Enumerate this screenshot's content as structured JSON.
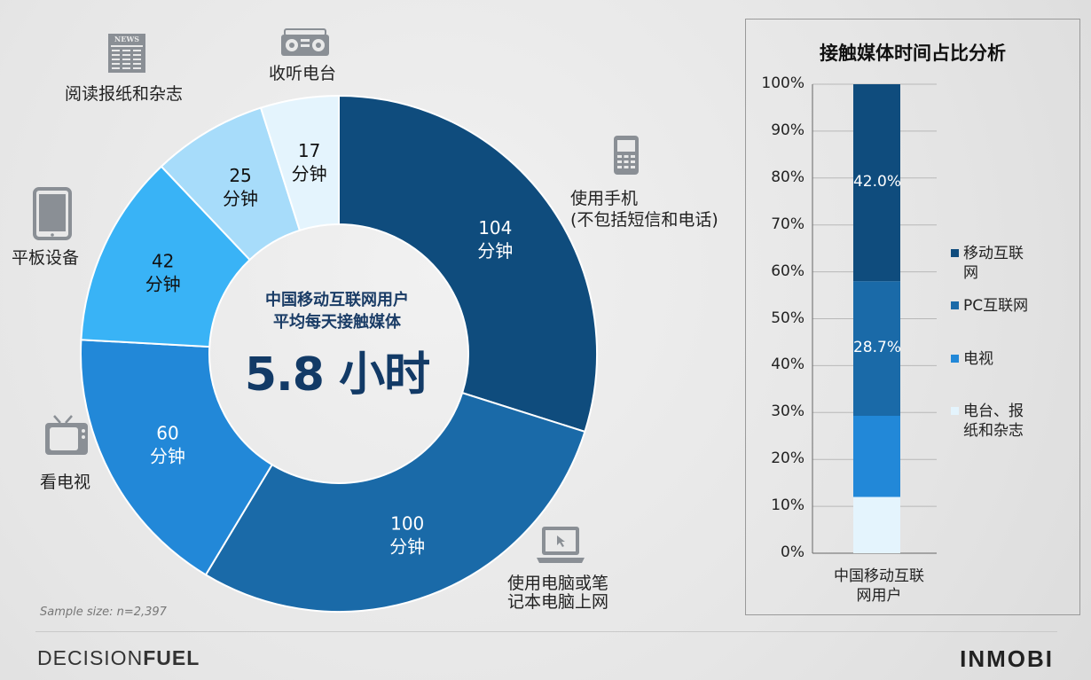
{
  "donut": {
    "center_line1": "中国移动互联网用户",
    "center_line2": "平均每天接触媒体",
    "center_value": "5.8 小时",
    "slices": [
      {
        "category": "使用手机\n(不包括短信和电话)",
        "value": 104,
        "label_line1": "104",
        "label_line2": "分钟",
        "color": "#0f4c7d",
        "light": true
      },
      {
        "category": "使用电脑或笔\n记本电脑上网",
        "value": 100,
        "label_line1": "100",
        "label_line2": "分钟",
        "color": "#1a6aa8",
        "light": true
      },
      {
        "category": "看电视",
        "value": 60,
        "label_line1": "60",
        "label_line2": "分钟",
        "color": "#2288d8",
        "light": true
      },
      {
        "category": "平板设备",
        "value": 42,
        "label_line1": "42",
        "label_line2": "分钟",
        "color": "#39b3f6",
        "light": false
      },
      {
        "category": "阅读报纸和杂志",
        "value": 25,
        "label_line1": "25",
        "label_line2": "分钟",
        "color": "#a7dcfa",
        "light": false
      },
      {
        "category": "收听电台",
        "value": 17,
        "label_line1": "17",
        "label_line2": "分钟",
        "color": "#e4f4fd",
        "light": false
      }
    ]
  },
  "categories": {
    "mobile_line1": "使用手机",
    "mobile_line2": "(不包括短信和电话)",
    "pc_line1": "使用电脑或笔",
    "pc_line2": "记本电脑上网",
    "tv": "看电视",
    "tablet": "平板设备",
    "print": "阅读报纸和杂志",
    "radio": "收听电台"
  },
  "icons": {
    "mobile": "mobile-phone-icon",
    "pc": "laptop-icon",
    "tv": "television-icon",
    "tablet": "tablet-icon",
    "print": "newspaper-icon",
    "radio": "radio-icon",
    "newspaper_text": "NEWS"
  },
  "chart_data": [
    {
      "type": "pie",
      "categories": [
        "使用手机(不包括短信和电话)",
        "使用电脑或笔记本电脑上网",
        "看电视",
        "平板设备",
        "阅读报纸和杂志",
        "收听电台"
      ],
      "values": [
        104,
        100,
        60,
        42,
        25,
        17
      ]
    },
    {
      "type": "bar",
      "stacked": true,
      "title": "接触媒体时间占比分析",
      "categories": [
        "中国移动互联网用户"
      ],
      "series": [
        {
          "name": "电台、报纸和杂志",
          "values": [
            12.0
          ],
          "color": "#e4f4fd"
        },
        {
          "name": "电视",
          "values": [
            17.3
          ],
          "color": "#2288d8"
        },
        {
          "name": "PC互联网",
          "values": [
            28.7
          ],
          "color": "#1a6aa8"
        },
        {
          "name": "移动互联网",
          "values": [
            42.0
          ],
          "color": "#0f4c7d"
        }
      ],
      "yticks": [
        "0%",
        "10%",
        "20%",
        "30%",
        "40%",
        "50%",
        "60%",
        "70%",
        "80%",
        "90%",
        "100%"
      ],
      "ylim": [
        0,
        100
      ],
      "grid": true,
      "legend_position": "right",
      "data_labels": {
        "移动互联网": "42.0%",
        "PC互联网": "28.7%"
      },
      "xcat_line1": "中国移动互联",
      "xcat_line2": "网用户"
    }
  ],
  "legend": [
    {
      "line1": "移动互联",
      "line2": "网",
      "color": "#0f4c7d"
    },
    {
      "line1": "PC互联网",
      "line2": "",
      "color": "#1a6aa8"
    },
    {
      "line1": "电视",
      "line2": "",
      "color": "#2288d8"
    },
    {
      "line1": "电台、报",
      "line2": "纸和杂志",
      "color": "#e4f4fd"
    }
  ],
  "footer": {
    "sample": "Sample size: n=2,397",
    "logo_left_light": "DECISION",
    "logo_left_bold": "FUEL",
    "logo_right": "INMOBI"
  }
}
